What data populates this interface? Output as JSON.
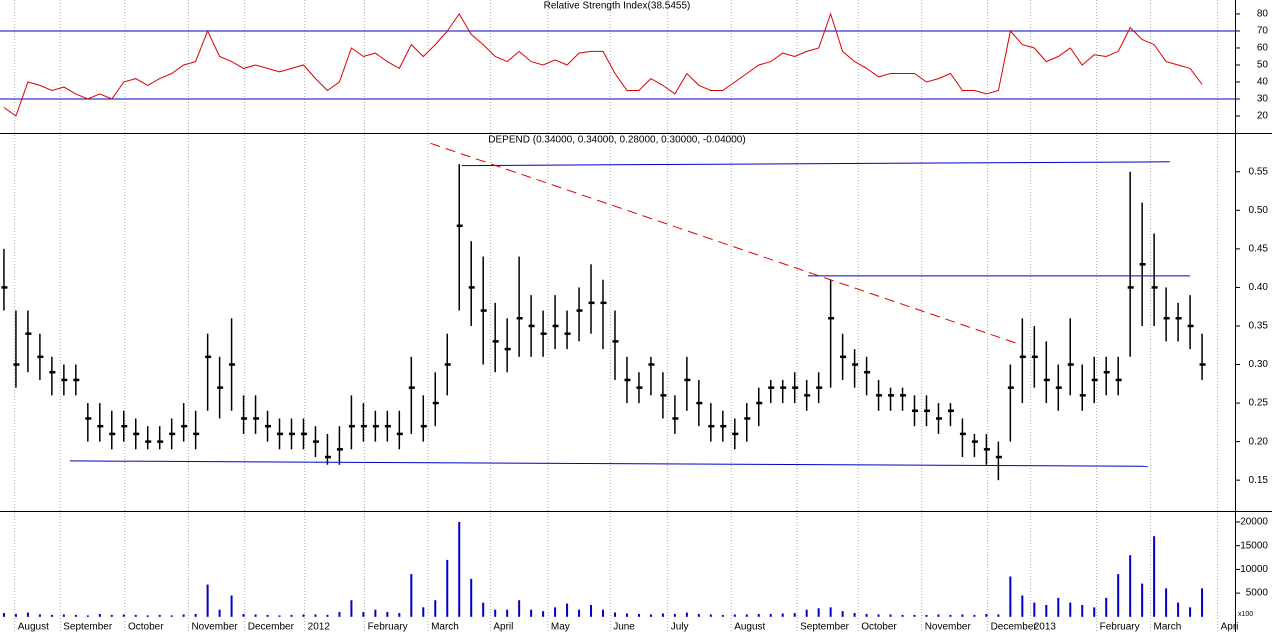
{
  "chart_data": [
    {
      "type": "line",
      "title": "Relative Strength Index(38.5455)",
      "color": "#dd0000",
      "values": [
        25,
        20,
        40,
        38,
        35,
        37,
        33,
        30,
        33,
        30,
        40,
        42,
        38,
        42,
        45,
        50,
        52,
        70,
        55,
        52,
        48,
        50,
        48,
        46,
        48,
        50,
        42,
        35,
        40,
        60,
        55,
        57,
        52,
        48,
        62,
        55,
        62,
        70,
        80,
        68,
        62,
        55,
        52,
        58,
        52,
        50,
        53,
        50,
        57,
        58,
        58,
        45,
        35,
        35,
        42,
        38,
        33,
        45,
        38,
        35,
        35,
        40,
        45,
        50,
        52,
        57,
        55,
        58,
        60,
        80,
        58,
        52,
        48,
        43,
        45,
        45,
        45,
        40,
        42,
        45,
        35,
        35,
        33,
        35,
        70,
        62,
        60,
        52,
        55,
        60,
        50,
        56,
        55,
        58,
        72,
        65,
        62,
        52,
        50,
        48,
        38.5
      ],
      "hlines": [
        30,
        70
      ],
      "hline_color": "#0000cc",
      "ylim": [
        10,
        88.2
      ],
      "yticks": [
        20,
        30,
        40,
        50,
        60,
        70,
        80
      ]
    },
    {
      "type": "ohlc",
      "title": "DEPEND (0.34000, 0.34000, 0.28000, 0.30000, -0.04000)",
      "color": "#000000",
      "high": [
        0.45,
        0.37,
        0.37,
        0.34,
        0.31,
        0.3,
        0.3,
        0.25,
        0.25,
        0.24,
        0.24,
        0.23,
        0.22,
        0.22,
        0.23,
        0.25,
        0.24,
        0.34,
        0.31,
        0.36,
        0.26,
        0.26,
        0.24,
        0.23,
        0.23,
        0.23,
        0.22,
        0.21,
        0.22,
        0.26,
        0.25,
        0.24,
        0.24,
        0.24,
        0.31,
        0.26,
        0.29,
        0.34,
        0.56,
        0.46,
        0.44,
        0.38,
        0.36,
        0.44,
        0.39,
        0.37,
        0.39,
        0.37,
        0.4,
        0.43,
        0.41,
        0.37,
        0.31,
        0.29,
        0.31,
        0.29,
        0.26,
        0.31,
        0.28,
        0.25,
        0.24,
        0.23,
        0.25,
        0.27,
        0.28,
        0.28,
        0.29,
        0.28,
        0.29,
        0.41,
        0.34,
        0.32,
        0.31,
        0.28,
        0.27,
        0.27,
        0.26,
        0.26,
        0.25,
        0.25,
        0.23,
        0.21,
        0.21,
        0.2,
        0.3,
        0.36,
        0.35,
        0.33,
        0.3,
        0.36,
        0.3,
        0.31,
        0.31,
        0.31,
        0.55,
        0.51,
        0.47,
        0.4,
        0.38,
        0.39,
        0.34
      ],
      "low": [
        0.37,
        0.27,
        0.29,
        0.28,
        0.26,
        0.26,
        0.26,
        0.2,
        0.2,
        0.19,
        0.2,
        0.19,
        0.19,
        0.19,
        0.19,
        0.2,
        0.19,
        0.24,
        0.23,
        0.24,
        0.21,
        0.21,
        0.2,
        0.19,
        0.19,
        0.19,
        0.18,
        0.17,
        0.17,
        0.19,
        0.2,
        0.2,
        0.2,
        0.19,
        0.21,
        0.2,
        0.22,
        0.26,
        0.37,
        0.35,
        0.3,
        0.29,
        0.29,
        0.31,
        0.31,
        0.31,
        0.32,
        0.32,
        0.33,
        0.34,
        0.32,
        0.28,
        0.25,
        0.25,
        0.26,
        0.23,
        0.21,
        0.24,
        0.22,
        0.2,
        0.2,
        0.19,
        0.2,
        0.22,
        0.25,
        0.25,
        0.25,
        0.24,
        0.25,
        0.27,
        0.28,
        0.27,
        0.26,
        0.24,
        0.24,
        0.24,
        0.22,
        0.22,
        0.21,
        0.22,
        0.18,
        0.18,
        0.17,
        0.15,
        0.2,
        0.25,
        0.27,
        0.25,
        0.24,
        0.26,
        0.24,
        0.25,
        0.26,
        0.26,
        0.31,
        0.35,
        0.35,
        0.33,
        0.33,
        0.32,
        0.28
      ],
      "close": [
        0.4,
        0.3,
        0.34,
        0.31,
        0.29,
        0.28,
        0.28,
        0.23,
        0.22,
        0.21,
        0.22,
        0.21,
        0.2,
        0.2,
        0.21,
        0.22,
        0.21,
        0.31,
        0.27,
        0.3,
        0.23,
        0.23,
        0.22,
        0.21,
        0.21,
        0.21,
        0.2,
        0.18,
        0.19,
        0.22,
        0.22,
        0.22,
        0.22,
        0.21,
        0.27,
        0.22,
        0.25,
        0.3,
        0.48,
        0.4,
        0.37,
        0.33,
        0.32,
        0.36,
        0.35,
        0.34,
        0.35,
        0.34,
        0.37,
        0.38,
        0.38,
        0.33,
        0.28,
        0.27,
        0.3,
        0.26,
        0.23,
        0.28,
        0.25,
        0.22,
        0.22,
        0.21,
        0.23,
        0.25,
        0.27,
        0.27,
        0.27,
        0.26,
        0.27,
        0.36,
        0.31,
        0.3,
        0.29,
        0.26,
        0.26,
        0.26,
        0.24,
        0.24,
        0.23,
        0.24,
        0.21,
        0.2,
        0.19,
        0.18,
        0.27,
        0.31,
        0.31,
        0.28,
        0.27,
        0.3,
        0.26,
        0.28,
        0.29,
        0.28,
        0.4,
        0.43,
        0.4,
        0.36,
        0.36,
        0.35,
        0.3
      ],
      "lines": [
        {
          "x": [
            38.2,
            97.3
          ],
          "y": [
            0.558,
            0.563
          ],
          "color": "#0000cc"
        },
        {
          "x": [
            67.1,
            99
          ],
          "y": [
            0.415,
            0.415
          ],
          "color": "#0000cc"
        },
        {
          "x": [
            5.5,
            95.5
          ],
          "y": [
            0.175,
            0.168
          ],
          "color": "#0000cc"
        },
        {
          "x": [
            35.6,
            85
          ],
          "y": [
            0.587,
            0.325
          ],
          "color": "#e00000",
          "dash": true
        }
      ],
      "ylim": [
        0.11,
        0.599
      ],
      "yticks": [
        0.15,
        {
          "value": 0.2,
          "label": "0.20"
        },
        0.25,
        {
          "value": 0.3,
          "label": "0.30"
        },
        0.35,
        {
          "value": 0.4,
          "label": "0.40"
        },
        0.45,
        {
          "value": 0.5,
          "label": "0.50"
        },
        0.55
      ]
    },
    {
      "type": "bar",
      "color": "#0000cc",
      "unit_label": "x100",
      "values": [
        800,
        600,
        900,
        500,
        400,
        500,
        400,
        300,
        600,
        400,
        500,
        400,
        300,
        400,
        300,
        500,
        600,
        6800,
        1500,
        4500,
        600,
        500,
        400,
        300,
        400,
        500,
        500,
        400,
        1000,
        3500,
        1000,
        1500,
        1000,
        800,
        9000,
        2000,
        3500,
        12000,
        20000,
        8000,
        3000,
        1500,
        1500,
        3500,
        1500,
        1200,
        2000,
        2800,
        1500,
        2500,
        1500,
        900,
        700,
        600,
        500,
        700,
        600,
        900,
        600,
        500,
        400,
        500,
        500,
        600,
        600,
        700,
        800,
        1500,
        1800,
        2000,
        1200,
        800,
        600,
        500,
        500,
        400,
        400,
        400,
        500,
        400,
        500,
        400,
        600,
        500,
        8500,
        4500,
        3000,
        2500,
        4000,
        3000,
        2500,
        2000,
        4000,
        9000,
        13000,
        7000,
        17000,
        6000,
        3000,
        2000,
        6000
      ],
      "ylim": [
        -3200,
        22100
      ],
      "yticks": [
        5000,
        10000,
        15000,
        20000
      ],
      "xlim": [
        -0.33,
        102.75
      ],
      "xticks": [
        {
          "value": 0.9,
          "label": "August"
        },
        {
          "value": 4.7,
          "label": "September"
        },
        {
          "value": 10.1,
          "label": "October"
        },
        {
          "value": 15.4,
          "label": "November"
        },
        {
          "value": 20.1,
          "label": "December"
        },
        {
          "value": 25.1,
          "label": "2012"
        },
        {
          "value": 30.1,
          "label": "February"
        },
        {
          "value": 35.4,
          "label": "March"
        },
        {
          "value": 40.6,
          "label": "April"
        },
        {
          "value": 45.4,
          "label": "May"
        },
        {
          "value": 50.6,
          "label": "June"
        },
        {
          "value": 55.4,
          "label": "July"
        },
        {
          "value": 60.7,
          "label": "August"
        },
        {
          "value": 66.2,
          "label": "September"
        },
        {
          "value": 71.3,
          "label": "October"
        },
        {
          "value": 76.6,
          "label": "November"
        },
        {
          "value": 82.1,
          "label": "December"
        },
        {
          "value": 85.7,
          "label": "2013"
        },
        {
          "value": 91.2,
          "label": "February"
        },
        {
          "value": 95.7,
          "label": "March"
        },
        {
          "value": 101.3,
          "label": "Apri"
        }
      ]
    }
  ]
}
